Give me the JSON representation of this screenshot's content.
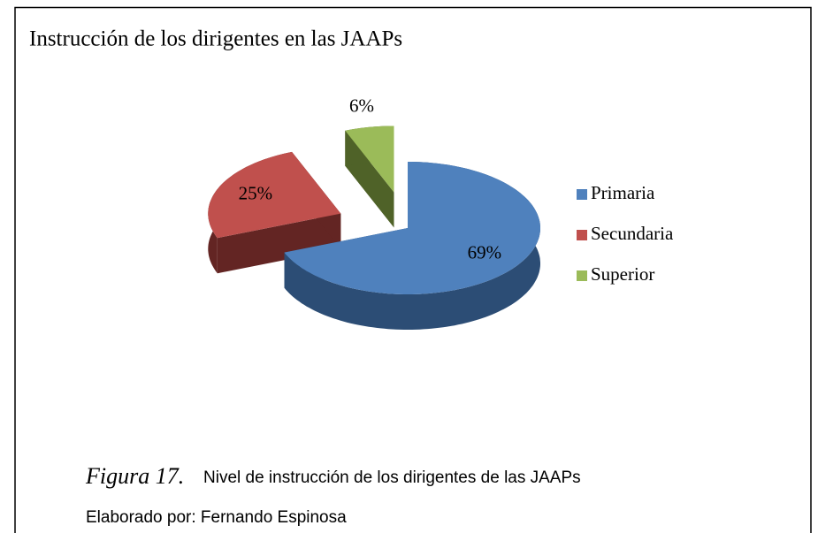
{
  "chart_data": {
    "type": "pie",
    "title": "Instrucción de los dirigentes en las JAAPs",
    "categories": [
      "Primaria",
      "Secundaria",
      "Superior"
    ],
    "values": [
      69,
      25,
      6
    ],
    "value_labels": [
      "69%",
      "25%",
      "6%"
    ],
    "colors": [
      "#4f81bd",
      "#c0504d",
      "#9bbb59"
    ],
    "side_colors": [
      "#2c4d75",
      "#632523",
      "#4f6228"
    ],
    "exploded": [
      false,
      true,
      true
    ],
    "legend": "right"
  },
  "caption": {
    "figure": "Figura 17.",
    "text": "Nivel de instrucción de los dirigentes de las JAAPs",
    "author": "Elaborado por: Fernando Espinosa"
  }
}
